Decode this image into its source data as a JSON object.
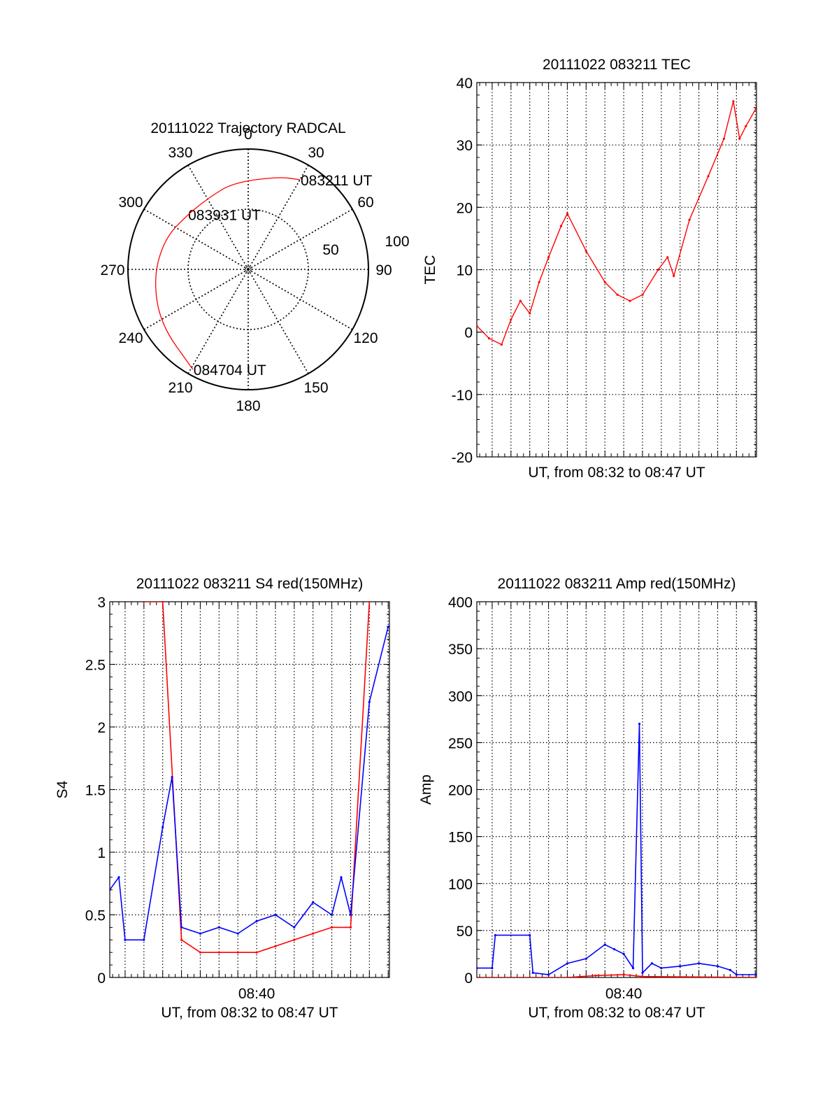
{
  "chart_data": [
    {
      "type": "polar",
      "title": "20111022 Trajectory RADCAL",
      "azimuth_labels": [
        "0",
        "30",
        "60",
        "90",
        "120",
        "150",
        "180",
        "210",
        "240",
        "270",
        "300",
        "330"
      ],
      "radius_labels": [
        "50",
        "100"
      ],
      "rlim": [
        0,
        100
      ],
      "grid": true,
      "trajectory": {
        "color": "#ff0000",
        "points": [
          [
            30,
            86
          ],
          [
            18,
            81
          ],
          [
            -10,
            73
          ],
          [
            -28,
            68
          ],
          [
            -48,
            68
          ],
          [
            -70,
            74
          ],
          [
            -95,
            79
          ],
          [
            -122,
            86
          ],
          [
            -151,
            95
          ]
        ]
      },
      "annotations": [
        {
          "text": "083211 UT",
          "azimuth": 30,
          "radius": 86
        },
        {
          "text": "083931 UT",
          "azimuth": -48,
          "radius": 68
        },
        {
          "text": "084704 UT",
          "azimuth": -151,
          "radius": 95
        }
      ]
    },
    {
      "type": "line",
      "title": "20111022 083211 TEC",
      "xlabel": "UT, from 08:32 to 08:47 UT",
      "ylabel": "TEC",
      "xlim": [
        "08:32:11",
        "08:47:04"
      ],
      "ylim": [
        -20,
        40
      ],
      "yticks": [
        -20,
        -10,
        0,
        10,
        20,
        30,
        40
      ],
      "grid": true,
      "series": [
        {
          "color": "#ff0000",
          "x": [
            "08:32:11",
            "08:32:50",
            "08:33:30",
            "08:34:00",
            "08:34:30",
            "08:35:00",
            "08:35:30",
            "08:36:00",
            "08:36:40",
            "08:37:00",
            "08:38:00",
            "08:39:00",
            "08:39:40",
            "08:40:20",
            "08:41:00",
            "08:41:50",
            "08:42:20",
            "08:42:40",
            "08:43:30",
            "08:44:30",
            "08:45:20",
            "08:45:50",
            "08:46:10",
            "08:46:30",
            "08:47:04"
          ],
          "values": [
            1,
            -1,
            -2,
            2,
            5,
            3,
            8,
            12,
            17,
            19,
            13,
            8,
            6,
            5,
            6,
            10,
            12,
            9,
            18,
            25,
            31,
            37,
            31,
            33,
            36
          ]
        }
      ]
    },
    {
      "type": "line",
      "title": "20111022 083211 S4 red(150MHz)",
      "xlabel": "UT, from 08:32 to 08:47 UT",
      "ylabel": "S4",
      "xlim": [
        "08:32:11",
        "08:47:04"
      ],
      "xticks": [
        "08:40"
      ],
      "ylim": [
        0,
        3
      ],
      "yticks": [
        0,
        0.5,
        1,
        1.5,
        2,
        2.5,
        3
      ],
      "grid": true,
      "series": [
        {
          "color": "#ff0000",
          "x": [
            "08:34:00",
            "08:35:00",
            "08:36:00",
            "08:37:00",
            "08:38:00",
            "08:39:00",
            "08:40:00",
            "08:41:00",
            "08:42:00",
            "08:43:00",
            "08:44:00",
            "08:45:00",
            "08:46:00"
          ],
          "values": [
            3,
            3,
            0.3,
            0.2,
            0.2,
            0.2,
            0.2,
            0.25,
            0.3,
            0.35,
            0.4,
            0.4,
            3
          ]
        },
        {
          "color": "#0000ff",
          "x": [
            "08:32:11",
            "08:32:40",
            "08:33:00",
            "08:34:00",
            "08:35:00",
            "08:35:30",
            "08:36:00",
            "08:37:00",
            "08:38:00",
            "08:39:00",
            "08:40:00",
            "08:41:00",
            "08:42:00",
            "08:43:00",
            "08:44:00",
            "08:44:30",
            "08:45:00",
            "08:46:00",
            "08:47:00"
          ],
          "values": [
            0.7,
            0.8,
            0.3,
            0.3,
            1.2,
            1.6,
            0.4,
            0.35,
            0.4,
            0.35,
            0.45,
            0.5,
            0.4,
            0.6,
            0.5,
            0.8,
            0.5,
            2.2,
            2.8
          ]
        }
      ]
    },
    {
      "type": "line",
      "title": "20111022 083211 Amp red(150MHz)",
      "xlabel": "UT, from 08:32 to 08:47 UT",
      "ylabel": "Amp",
      "xlim": [
        "08:32:11",
        "08:47:04"
      ],
      "xticks": [
        "08:40"
      ],
      "ylim": [
        0,
        400
      ],
      "yticks": [
        0,
        50,
        100,
        150,
        200,
        250,
        300,
        350,
        400
      ],
      "grid": true,
      "series": [
        {
          "color": "#0000ff",
          "x": [
            "08:32:11",
            "08:33:00",
            "08:33:10",
            "08:35:00",
            "08:35:10",
            "08:36:00",
            "08:37:00",
            "08:38:00",
            "08:39:00",
            "08:39:30",
            "08:40:00",
            "08:40:30",
            "08:40:50",
            "08:41:00",
            "08:41:30",
            "08:42:00",
            "08:43:00",
            "08:44:00",
            "08:45:00",
            "08:45:40",
            "08:46:00",
            "08:47:04"
          ],
          "values": [
            10,
            10,
            45,
            45,
            5,
            3,
            15,
            20,
            35,
            30,
            25,
            10,
            270,
            5,
            15,
            10,
            12,
            15,
            12,
            8,
            3,
            3
          ]
        },
        {
          "color": "#ff0000",
          "x": [
            "08:32:11",
            "08:37:00",
            "08:38:30",
            "08:40:00",
            "08:41:00",
            "08:47:04"
          ],
          "values": [
            0,
            0,
            2,
            3,
            1,
            0
          ]
        }
      ]
    }
  ]
}
